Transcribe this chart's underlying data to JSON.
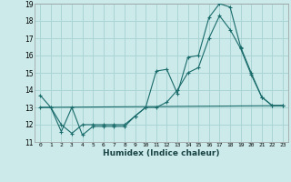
{
  "xlabel": "Humidex (Indice chaleur)",
  "background_color": "#cceaea",
  "grid_color": "#aad4d4",
  "line_color": "#1a6b6b",
  "xlim": [
    -0.5,
    23.5
  ],
  "ylim": [
    11,
    19
  ],
  "xticks": [
    0,
    1,
    2,
    3,
    4,
    5,
    6,
    7,
    8,
    9,
    10,
    11,
    12,
    13,
    14,
    15,
    16,
    17,
    18,
    19,
    20,
    21,
    22,
    23
  ],
  "yticks": [
    11,
    12,
    13,
    14,
    15,
    16,
    17,
    18,
    19
  ],
  "line1_x": [
    0,
    1,
    2,
    3,
    4,
    5,
    6,
    7,
    8,
    9,
    10,
    11,
    12,
    13,
    14,
    15,
    16,
    17,
    18,
    19,
    20,
    21,
    22,
    23
  ],
  "line1_y": [
    13.7,
    13.0,
    11.6,
    13.0,
    11.4,
    11.9,
    11.9,
    11.9,
    11.9,
    12.5,
    13.0,
    15.1,
    15.2,
    13.8,
    15.9,
    16.0,
    18.2,
    19.0,
    18.8,
    16.5,
    15.0,
    13.6,
    13.1,
    13.1
  ],
  "line2_x": [
    0,
    1,
    2,
    3,
    4,
    5,
    6,
    7,
    8,
    9,
    10,
    11,
    12,
    13,
    14,
    15,
    16,
    17,
    18,
    19,
    20,
    21,
    22,
    23
  ],
  "line2_y": [
    13.0,
    13.0,
    12.0,
    11.5,
    12.0,
    12.0,
    12.0,
    12.0,
    12.0,
    12.5,
    13.0,
    13.0,
    13.3,
    14.0,
    15.0,
    15.3,
    17.0,
    18.3,
    17.5,
    16.4,
    14.9,
    13.6,
    13.1,
    13.1
  ],
  "line3_x": [
    0,
    23
  ],
  "line3_y": [
    13.0,
    13.1
  ]
}
